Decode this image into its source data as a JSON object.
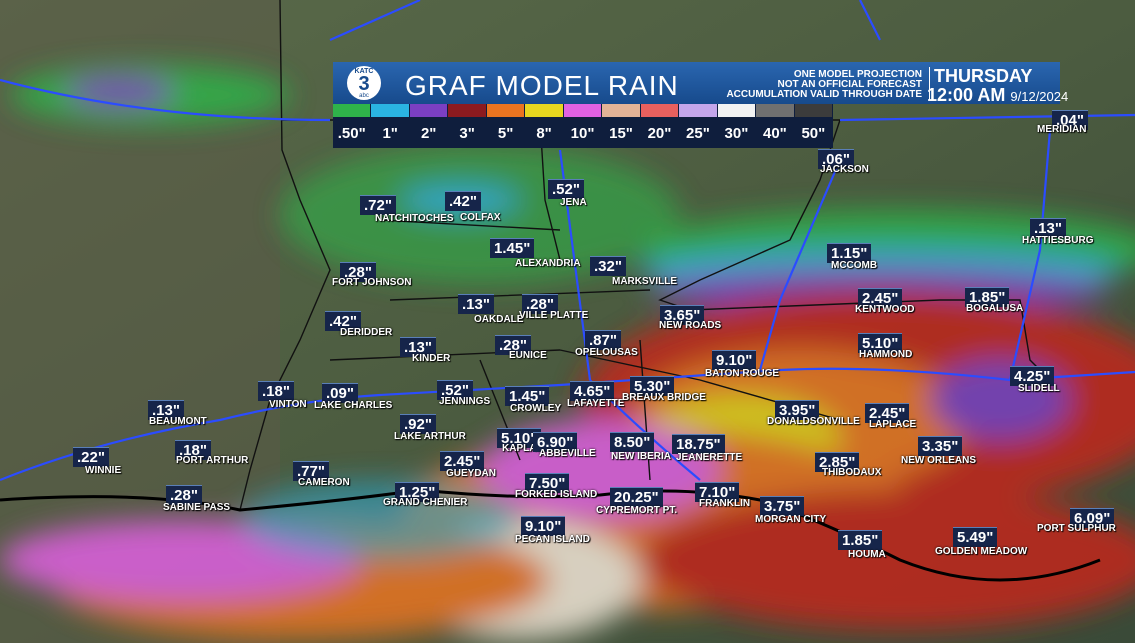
{
  "header": {
    "logo": {
      "station": "KATC",
      "channel": "3",
      "network": "abc"
    },
    "title": "GRAF MODEL RAIN",
    "disclaimer": [
      "ONE MODEL PROJECTION",
      "NOT AN OFFICIAL FORECAST",
      "ACCUMULATION VALID THROUGH DATE"
    ],
    "day": "THURSDAY",
    "time": "12:00 AM",
    "date": "9/12/2024"
  },
  "legend": [
    {
      "label": ".50\"",
      "color": "#2fb34a"
    },
    {
      "label": "1\"",
      "color": "#2ab4e2"
    },
    {
      "label": "2\"",
      "color": "#7b3fc2"
    },
    {
      "label": "3\"",
      "color": "#8c1a1f"
    },
    {
      "label": "5\"",
      "color": "#ea7420"
    },
    {
      "label": "8\"",
      "color": "#e6d61f"
    },
    {
      "label": "10\"",
      "color": "#e061e2"
    },
    {
      "label": "15\"",
      "color": "#e2b396"
    },
    {
      "label": "20\"",
      "color": "#e8605e"
    },
    {
      "label": "25\"",
      "color": "#c4a6ea"
    },
    {
      "label": "30\"",
      "color": "#f2f2f2"
    },
    {
      "label": "40\"",
      "color": "#707070"
    },
    {
      "label": "50\"",
      "color": "#3c3c3c"
    }
  ],
  "cities": [
    {
      "amount": ".72\"",
      "name": "NATCHITOCHES"
    },
    {
      "amount": ".42\"",
      "name": "COLFAX"
    },
    {
      "amount": ".52\"",
      "name": "JENA"
    },
    {
      "amount": "1.45\"",
      "name": "ALEXANDRIA"
    },
    {
      "amount": ".32\"",
      "name": "MARKSVILLE"
    },
    {
      "amount": ".28\"",
      "name": "FORT JOHNSON"
    },
    {
      "amount": ".13\"",
      "name": "OAKDALE"
    },
    {
      "amount": ".28\"",
      "name": "VILLE PLATTE"
    },
    {
      "amount": ".42\"",
      "name": "DERIDDER"
    },
    {
      "amount": ".13\"",
      "name": "KINDER"
    },
    {
      "amount": ".28\"",
      "name": "EUNICE"
    },
    {
      "amount": ".87\"",
      "name": "OPELOUSAS"
    },
    {
      "amount": "3.65\"",
      "name": "NEW ROADS"
    },
    {
      "amount": ".18\"",
      "name": "VINTON"
    },
    {
      "amount": ".09\"",
      "name": "LAKE CHARLES"
    },
    {
      "amount": ".52\"",
      "name": "JENNINGS"
    },
    {
      "amount": "1.45\"",
      "name": "CROWLEY"
    },
    {
      "amount": "4.65\"",
      "name": "LAFAYETTE"
    },
    {
      "amount": "5.30\"",
      "name": "BREAUX BRIDGE"
    },
    {
      "amount": "9.10\"",
      "name": "BATON ROUGE"
    },
    {
      "amount": ".13\"",
      "name": "BEAUMONT"
    },
    {
      "amount": ".92\"",
      "name": "LAKE ARTHUR"
    },
    {
      "amount": "5.10\"",
      "name": "KAPLAN"
    },
    {
      "amount": "6.90\"",
      "name": "ABBEVILLE"
    },
    {
      "amount": "8.50\"",
      "name": "NEW IBERIA"
    },
    {
      "amount": "18.75\"",
      "name": "JEANERETTE"
    },
    {
      "amount": "3.95\"",
      "name": "DONALDSONVILLE"
    },
    {
      "amount": "2.45\"",
      "name": "LAPLACE"
    },
    {
      "amount": ".22\"",
      "name": "WINNIE"
    },
    {
      "amount": ".18\"",
      "name": "PORT ARTHUR"
    },
    {
      "amount": "2.45\"",
      "name": "GUEYDAN"
    },
    {
      "amount": ".77\"",
      "name": "CAMERON"
    },
    {
      "amount": "2.85\"",
      "name": "THIBODAUX"
    },
    {
      "amount": "3.35\"",
      "name": "NEW ORLEANS"
    },
    {
      "amount": "7.50\"",
      "name": "FORKED ISLAND"
    },
    {
      "amount": "1.25\"",
      "name": "GRAND CHENIER"
    },
    {
      "amount": ".28\"",
      "name": "SABINE PASS"
    },
    {
      "amount": "20.25\"",
      "name": "CYPREMORT PT."
    },
    {
      "amount": "7.10\"",
      "name": "FRANKLIN"
    },
    {
      "amount": "3.75\"",
      "name": "MORGAN CITY"
    },
    {
      "amount": "9.10\"",
      "name": "PECAN ISLAND"
    },
    {
      "amount": "1.85\"",
      "name": "HOUMA"
    },
    {
      "amount": "5.49\"",
      "name": "GOLDEN MEADOW"
    },
    {
      "amount": "6.09\"",
      "name": "PORT SULPHUR"
    },
    {
      "amount": "1.15\"",
      "name": "MCCOMB"
    },
    {
      "amount": ".06\"",
      "name": "JACKSON"
    },
    {
      "amount": ".04\"",
      "name": "MERIDIAN"
    },
    {
      "amount": ".13\"",
      "name": "HATTIESBURG"
    },
    {
      "amount": "2.45\"",
      "name": "KENTWOOD"
    },
    {
      "amount": "1.85\"",
      "name": "BOGALUSA"
    },
    {
      "amount": "5.10\"",
      "name": "HAMMOND"
    },
    {
      "amount": "4.25\"",
      "name": "SLIDELL"
    }
  ]
}
